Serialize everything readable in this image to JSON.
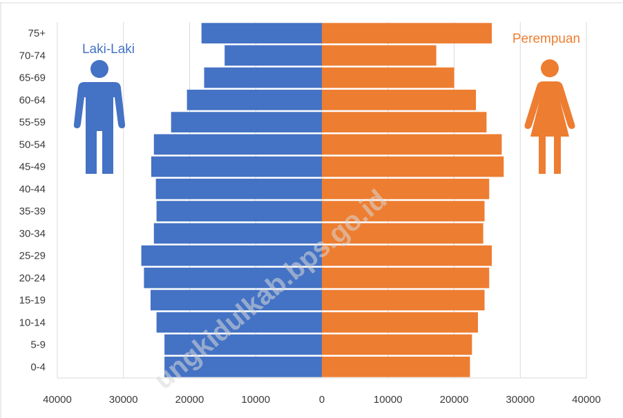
{
  "chart_data": {
    "type": "bar",
    "orientation": "horizontal",
    "subtype": "population-pyramid",
    "title": "",
    "xlabel": "",
    "ylabel": "",
    "categories": [
      "0-4",
      "5-9",
      "10-14",
      "15-19",
      "20-24",
      "25-29",
      "30-34",
      "35-39",
      "40-44",
      "45-49",
      "50-54",
      "55-59",
      "60-64",
      "65-69",
      "70-74",
      "75+"
    ],
    "series": [
      {
        "name": "Laki-Laki",
        "color": "#4472c4",
        "side": "left",
        "values": [
          23800,
          23800,
          25000,
          25900,
          26900,
          27300,
          25400,
          25000,
          25100,
          25800,
          25400,
          22800,
          20400,
          17800,
          14700,
          18200
        ]
      },
      {
        "name": "Perempuan",
        "color": "#ed7d31",
        "side": "right",
        "values": [
          22400,
          22700,
          23600,
          24600,
          25300,
          25700,
          24400,
          24600,
          25300,
          27500,
          27200,
          24900,
          23300,
          20000,
          17300,
          25700
        ]
      }
    ],
    "xlim": [
      -40000,
      40000
    ],
    "xticks": [
      -40000,
      -30000,
      -20000,
      -10000,
      0,
      10000,
      20000,
      30000,
      40000
    ],
    "xtick_labels": [
      "40000",
      "30000",
      "20000",
      "10000",
      "0",
      "10000",
      "20000",
      "30000",
      "40000"
    ],
    "grid": "vertical",
    "legend": [
      {
        "label": "Laki-Laki",
        "position": "top-left",
        "icon": "male-person-icon"
      },
      {
        "label": "Perempuan",
        "position": "top-right",
        "icon": "female-person-icon"
      }
    ],
    "watermark": "ungkidulkab.bps.go.id"
  }
}
